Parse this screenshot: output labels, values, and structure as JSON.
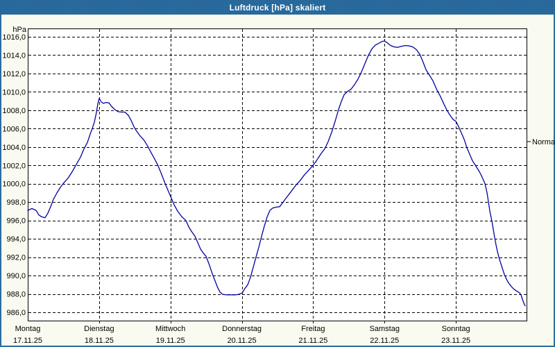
{
  "window": {
    "title": "Luftdruck [hPa] skaliert",
    "colors": {
      "titlebar": "#2B6DA1",
      "titlebar_text": "#FFFFFF",
      "border": "#2B6DA1",
      "background": "#FAFBF0",
      "plot_background": "#FFFFFF",
      "grid": "#000000",
      "axis": "#000000",
      "text": "#000000",
      "line": "#0000A0"
    }
  },
  "chart_data": {
    "type": "line",
    "title": "Luftdruck [hPa] skaliert",
    "ylabel": "hPa",
    "ylim": [
      986,
      1016
    ],
    "ytick_step": 2,
    "grid": true,
    "yticks": [
      {
        "value": 1016,
        "label": "1016,0"
      },
      {
        "value": 1014,
        "label": "1014,0"
      },
      {
        "value": 1012,
        "label": "1012,0"
      },
      {
        "value": 1010,
        "label": "1010,0"
      },
      {
        "value": 1008,
        "label": "1008,0"
      },
      {
        "value": 1006,
        "label": "1006,0"
      },
      {
        "value": 1004,
        "label": "1004,0"
      },
      {
        "value": 1002,
        "label": "1002,0"
      },
      {
        "value": 1000,
        "label": "1000,0"
      },
      {
        "value": 998,
        "label": "998,0"
      },
      {
        "value": 996,
        "label": "996,0"
      },
      {
        "value": 994,
        "label": "994,0"
      },
      {
        "value": 992,
        "label": "992,0"
      },
      {
        "value": 990,
        "label": "990,0"
      },
      {
        "value": 988,
        "label": "988,0"
      },
      {
        "value": 986,
        "label": "986,0"
      }
    ],
    "x_range_days": [
      0,
      7
    ],
    "x_days": [
      {
        "name": "Montag",
        "date": "17.11.25"
      },
      {
        "name": "Dienstag",
        "date": "18.11.25"
      },
      {
        "name": "Mittwoch",
        "date": "19.11.25"
      },
      {
        "name": "Donnerstag",
        "date": "20.11.25"
      },
      {
        "name": "Freitag",
        "date": "21.11.25"
      },
      {
        "name": "Samstag",
        "date": "22.11.25"
      },
      {
        "name": "Sonntag",
        "date": "23.11.25"
      }
    ],
    "normal_marker": {
      "label": "Normal",
      "value": 1004.6
    },
    "series": [
      {
        "name": "Luftdruck",
        "color": "#0000A0",
        "points": [
          [
            0.0,
            997.1
          ],
          [
            0.058,
            997.3
          ],
          [
            0.117,
            997.1
          ],
          [
            0.156,
            996.6
          ],
          [
            0.194,
            996.4
          ],
          [
            0.243,
            996.3
          ],
          [
            0.282,
            996.8
          ],
          [
            0.321,
            997.5
          ],
          [
            0.36,
            998.3
          ],
          [
            0.408,
            999.0
          ],
          [
            0.457,
            999.6
          ],
          [
            0.506,
            1000.1
          ],
          [
            0.564,
            1000.6
          ],
          [
            0.622,
            1001.3
          ],
          [
            0.681,
            1002.1
          ],
          [
            0.739,
            1002.9
          ],
          [
            0.788,
            1003.8
          ],
          [
            0.836,
            1004.5
          ],
          [
            0.875,
            1005.4
          ],
          [
            0.904,
            1006.0
          ],
          [
            0.933,
            1006.7
          ],
          [
            0.963,
            1007.8
          ],
          [
            0.982,
            1008.7
          ],
          [
            1.002,
            1009.3
          ],
          [
            1.031,
            1008.9
          ],
          [
            1.06,
            1008.75
          ],
          [
            1.099,
            1008.85
          ],
          [
            1.138,
            1008.8
          ],
          [
            1.177,
            1008.4
          ],
          [
            1.216,
            1008.1
          ],
          [
            1.264,
            1007.85
          ],
          [
            1.313,
            1007.8
          ],
          [
            1.361,
            1007.8
          ],
          [
            1.41,
            1007.45
          ],
          [
            1.449,
            1006.9
          ],
          [
            1.488,
            1006.2
          ],
          [
            1.527,
            1005.7
          ],
          [
            1.575,
            1005.2
          ],
          [
            1.624,
            1004.8
          ],
          [
            1.673,
            1004.2
          ],
          [
            1.721,
            1003.5
          ],
          [
            1.77,
            1002.8
          ],
          [
            1.818,
            1002.1
          ],
          [
            1.867,
            1001.2
          ],
          [
            1.926,
            1000.0
          ],
          [
            1.964,
            999.3
          ],
          [
            2.003,
            998.6
          ],
          [
            2.052,
            997.7
          ],
          [
            2.101,
            997.0
          ],
          [
            2.159,
            996.4
          ],
          [
            2.217,
            996.0
          ],
          [
            2.256,
            995.3
          ],
          [
            2.295,
            994.8
          ],
          [
            2.343,
            994.3
          ],
          [
            2.382,
            993.6
          ],
          [
            2.421,
            992.9
          ],
          [
            2.46,
            992.45
          ],
          [
            2.499,
            992.1
          ],
          [
            2.538,
            991.3
          ],
          [
            2.577,
            990.4
          ],
          [
            2.616,
            989.6
          ],
          [
            2.655,
            988.8
          ],
          [
            2.694,
            988.2
          ],
          [
            2.733,
            987.95
          ],
          [
            2.791,
            987.9
          ],
          [
            2.849,
            987.9
          ],
          [
            2.908,
            987.9
          ],
          [
            2.956,
            987.95
          ],
          [
            3.005,
            988.1
          ],
          [
            3.044,
            988.6
          ],
          [
            3.083,
            989.0
          ],
          [
            3.121,
            989.8
          ],
          [
            3.16,
            990.9
          ],
          [
            3.199,
            992.0
          ],
          [
            3.238,
            993.1
          ],
          [
            3.277,
            994.3
          ],
          [
            3.316,
            995.4
          ],
          [
            3.355,
            996.4
          ],
          [
            3.394,
            997.1
          ],
          [
            3.433,
            997.35
          ],
          [
            3.481,
            997.45
          ],
          [
            3.53,
            997.5
          ],
          [
            3.569,
            997.9
          ],
          [
            3.617,
            998.4
          ],
          [
            3.666,
            998.9
          ],
          [
            3.715,
            999.4
          ],
          [
            3.763,
            999.9
          ],
          [
            3.812,
            1000.3
          ],
          [
            3.87,
            1000.9
          ],
          [
            3.929,
            1001.4
          ],
          [
            3.987,
            1001.9
          ],
          [
            4.045,
            1002.5
          ],
          [
            4.104,
            1003.2
          ],
          [
            4.162,
            1003.8
          ],
          [
            4.211,
            1004.6
          ],
          [
            4.259,
            1005.6
          ],
          [
            4.308,
            1006.8
          ],
          [
            4.357,
            1008.1
          ],
          [
            4.396,
            1009.0
          ],
          [
            4.434,
            1009.7
          ],
          [
            4.483,
            1010.05
          ],
          [
            4.532,
            1010.3
          ],
          [
            4.58,
            1010.8
          ],
          [
            4.629,
            1011.4
          ],
          [
            4.678,
            1012.2
          ],
          [
            4.726,
            1013.1
          ],
          [
            4.775,
            1014.0
          ],
          [
            4.824,
            1014.7
          ],
          [
            4.872,
            1015.1
          ],
          [
            4.921,
            1015.3
          ],
          [
            4.969,
            1015.5
          ],
          [
            4.998,
            1015.55
          ],
          [
            5.037,
            1015.35
          ],
          [
            5.086,
            1015.05
          ],
          [
            5.134,
            1014.9
          ],
          [
            5.183,
            1014.85
          ],
          [
            5.232,
            1014.95
          ],
          [
            5.29,
            1015.05
          ],
          [
            5.348,
            1015.0
          ],
          [
            5.397,
            1014.9
          ],
          [
            5.446,
            1014.6
          ],
          [
            5.494,
            1014.1
          ],
          [
            5.543,
            1013.2
          ],
          [
            5.582,
            1012.4
          ],
          [
            5.631,
            1011.8
          ],
          [
            5.679,
            1011.2
          ],
          [
            5.728,
            1010.3
          ],
          [
            5.777,
            1009.6
          ],
          [
            5.825,
            1008.8
          ],
          [
            5.874,
            1008.0
          ],
          [
            5.923,
            1007.4
          ],
          [
            5.961,
            1007.0
          ],
          [
            6.0,
            1006.8
          ],
          [
            6.039,
            1006.2
          ],
          [
            6.078,
            1005.5
          ],
          [
            6.117,
            1004.8
          ],
          [
            6.155,
            1003.9
          ],
          [
            6.194,
            1003.2
          ],
          [
            6.233,
            1002.5
          ],
          [
            6.282,
            1001.9
          ],
          [
            6.33,
            1001.3
          ],
          [
            6.369,
            1000.7
          ],
          [
            6.408,
            1000.0
          ],
          [
            6.437,
            999.0
          ],
          [
            6.457,
            998.0
          ],
          [
            6.476,
            997.0
          ],
          [
            6.505,
            995.9
          ],
          [
            6.525,
            995.0
          ],
          [
            6.544,
            994.1
          ],
          [
            6.563,
            993.3
          ],
          [
            6.583,
            992.6
          ],
          [
            6.602,
            992.0
          ],
          [
            6.622,
            991.5
          ],
          [
            6.651,
            990.8
          ],
          [
            6.68,
            990.1
          ],
          [
            6.709,
            989.6
          ],
          [
            6.738,
            989.2
          ],
          [
            6.777,
            988.8
          ],
          [
            6.816,
            988.5
          ],
          [
            6.855,
            988.3
          ],
          [
            6.894,
            988.1
          ],
          [
            6.913,
            987.9
          ],
          [
            6.933,
            987.4
          ],
          [
            6.952,
            987.0
          ],
          [
            6.971,
            986.7
          ]
        ]
      }
    ]
  }
}
